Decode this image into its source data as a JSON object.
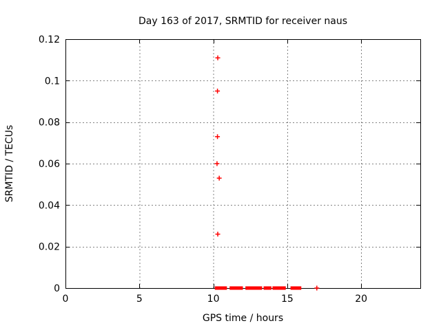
{
  "chart_data": {
    "type": "scatter",
    "title": "Day 163 of 2017, SRMTID for receiver naus",
    "xlabel": "GPS time / hours",
    "ylabel": "SRMTID / TECUs",
    "xlim": [
      0,
      24
    ],
    "ylim": [
      0,
      0.12
    ],
    "xticks": {
      "values": [
        0,
        5,
        10,
        15,
        20
      ],
      "labels": [
        "0",
        "5",
        "10",
        "15",
        "20"
      ]
    },
    "yticks": {
      "values": [
        0,
        0.02,
        0.04,
        0.06,
        0.08,
        0.1,
        0.12
      ],
      "labels": [
        "0",
        "0.02",
        "0.04",
        "0.06",
        "0.08",
        "0.1",
        "0.12"
      ]
    },
    "grid": true,
    "legend_position": "none",
    "marker": "plus",
    "marker_color": "#ff0000",
    "grid_color": "#808080",
    "border_color": "#000000",
    "series": [
      {
        "name": "SRMTID",
        "points": [
          {
            "x": 10.3,
            "y": 0.111
          },
          {
            "x": 10.28,
            "y": 0.095
          },
          {
            "x": 10.28,
            "y": 0.073
          },
          {
            "x": 10.25,
            "y": 0.06
          },
          {
            "x": 10.4,
            "y": 0.053
          },
          {
            "x": 10.3,
            "y": 0.026
          },
          {
            "x": 17.0,
            "y": 0.0
          }
        ],
        "zero_value_runs": [
          [
            10.1,
            10.92
          ],
          [
            11.1,
            12.0
          ],
          [
            12.17,
            13.3
          ],
          [
            13.4,
            13.93
          ],
          [
            14.0,
            14.9
          ],
          [
            15.22,
            15.95
          ]
        ]
      }
    ]
  }
}
